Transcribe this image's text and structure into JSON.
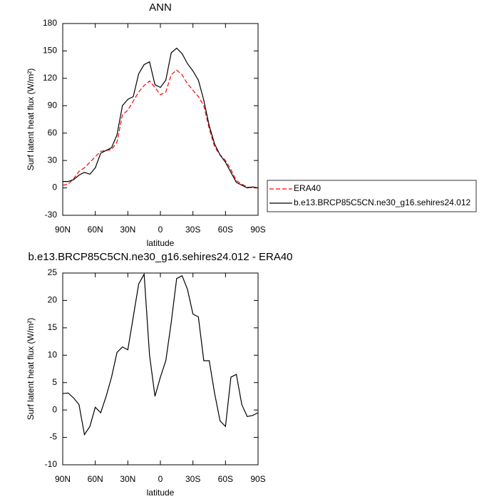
{
  "chart_data": [
    {
      "type": "line",
      "title": "ANN",
      "xlabel": "latitude",
      "ylabel": "Surf latent heat flux (W/m²)",
      "x": [
        90,
        85,
        80,
        75,
        70,
        65,
        60,
        55,
        50,
        45,
        40,
        35,
        30,
        25,
        20,
        15,
        10,
        5,
        0,
        -5,
        -10,
        -15,
        -20,
        -25,
        -30,
        -35,
        -40,
        -45,
        -50,
        -55,
        -60,
        -65,
        -70,
        -75,
        -80,
        -85,
        -90
      ],
      "series": [
        {
          "name": "ERA40",
          "color": "#ff0000",
          "dashed": true,
          "values": [
            3,
            4,
            10,
            18,
            22,
            28,
            34,
            40,
            41,
            42,
            50,
            80,
            85,
            95,
            105,
            112,
            117,
            110,
            102,
            105,
            124,
            129,
            124,
            114,
            107,
            100,
            90,
            65,
            45,
            36,
            30,
            20,
            8,
            4,
            1,
            0,
            0
          ]
        },
        {
          "name": "b.e13.BRCP85C5CN.ne30_g16.sehires24.012",
          "color": "#000000",
          "dashed": false,
          "values": [
            7,
            7,
            9,
            14,
            17,
            15,
            22,
            38,
            41,
            44,
            58,
            90,
            97,
            100,
            125,
            135,
            138,
            113,
            110,
            118,
            148,
            153,
            147,
            136,
            128,
            118,
            96,
            68,
            48,
            36,
            28,
            17,
            6,
            3,
            0,
            1,
            0
          ]
        }
      ],
      "xlim": [
        90,
        -90
      ],
      "xticks": [
        {
          "value": 90,
          "label": "90N"
        },
        {
          "value": 60,
          "label": "60N"
        },
        {
          "value": 30,
          "label": "30N"
        },
        0,
        {
          "value": -30,
          "label": "30S"
        },
        {
          "value": -60,
          "label": "60S"
        },
        {
          "value": -90,
          "label": "90S"
        }
      ],
      "ylim": [
        -30,
        180
      ],
      "yticks": [
        -30,
        0,
        30,
        60,
        90,
        120,
        150,
        180
      ],
      "legend": "right"
    },
    {
      "type": "line",
      "title": "b.e13.BRCP85C5CN.ne30_g16.sehires24.012 - ERA40",
      "xlabel": "latitude",
      "ylabel": "Surf latent heat flux (W/m²)",
      "x": [
        90,
        85,
        80,
        75,
        70,
        65,
        60,
        55,
        50,
        45,
        40,
        35,
        30,
        25,
        20,
        15,
        10,
        5,
        0,
        -5,
        -10,
        -15,
        -20,
        -25,
        -30,
        -35,
        -40,
        -45,
        -50,
        -55,
        -60,
        -65,
        -70,
        -75,
        -80,
        -85,
        -90
      ],
      "series": [
        {
          "color": "#000000",
          "dashed": false,
          "values": [
            3,
            3.1,
            2.2,
            1,
            -4.5,
            -3,
            0.5,
            -0.5,
            2.5,
            6,
            10.5,
            11.5,
            11,
            17,
            23,
            24.8,
            10,
            2.5,
            6,
            9,
            16,
            24,
            24.5,
            22,
            17.5,
            17,
            9,
            9,
            3,
            -2,
            -3,
            6,
            6.5,
            1,
            -1.2,
            -1,
            -0.5
          ]
        }
      ],
      "xlim": [
        90,
        -90
      ],
      "xticks": [
        {
          "value": 90,
          "label": "90N"
        },
        {
          "value": 60,
          "label": "60N"
        },
        {
          "value": 30,
          "label": "30N"
        },
        0,
        {
          "value": -30,
          "label": "30S"
        },
        {
          "value": -60,
          "label": "60S"
        },
        {
          "value": -90,
          "label": "90S"
        }
      ],
      "ylim": [
        -10,
        25
      ],
      "yticks": [
        -10,
        -5,
        0,
        5,
        10,
        15,
        20,
        25
      ]
    }
  ]
}
